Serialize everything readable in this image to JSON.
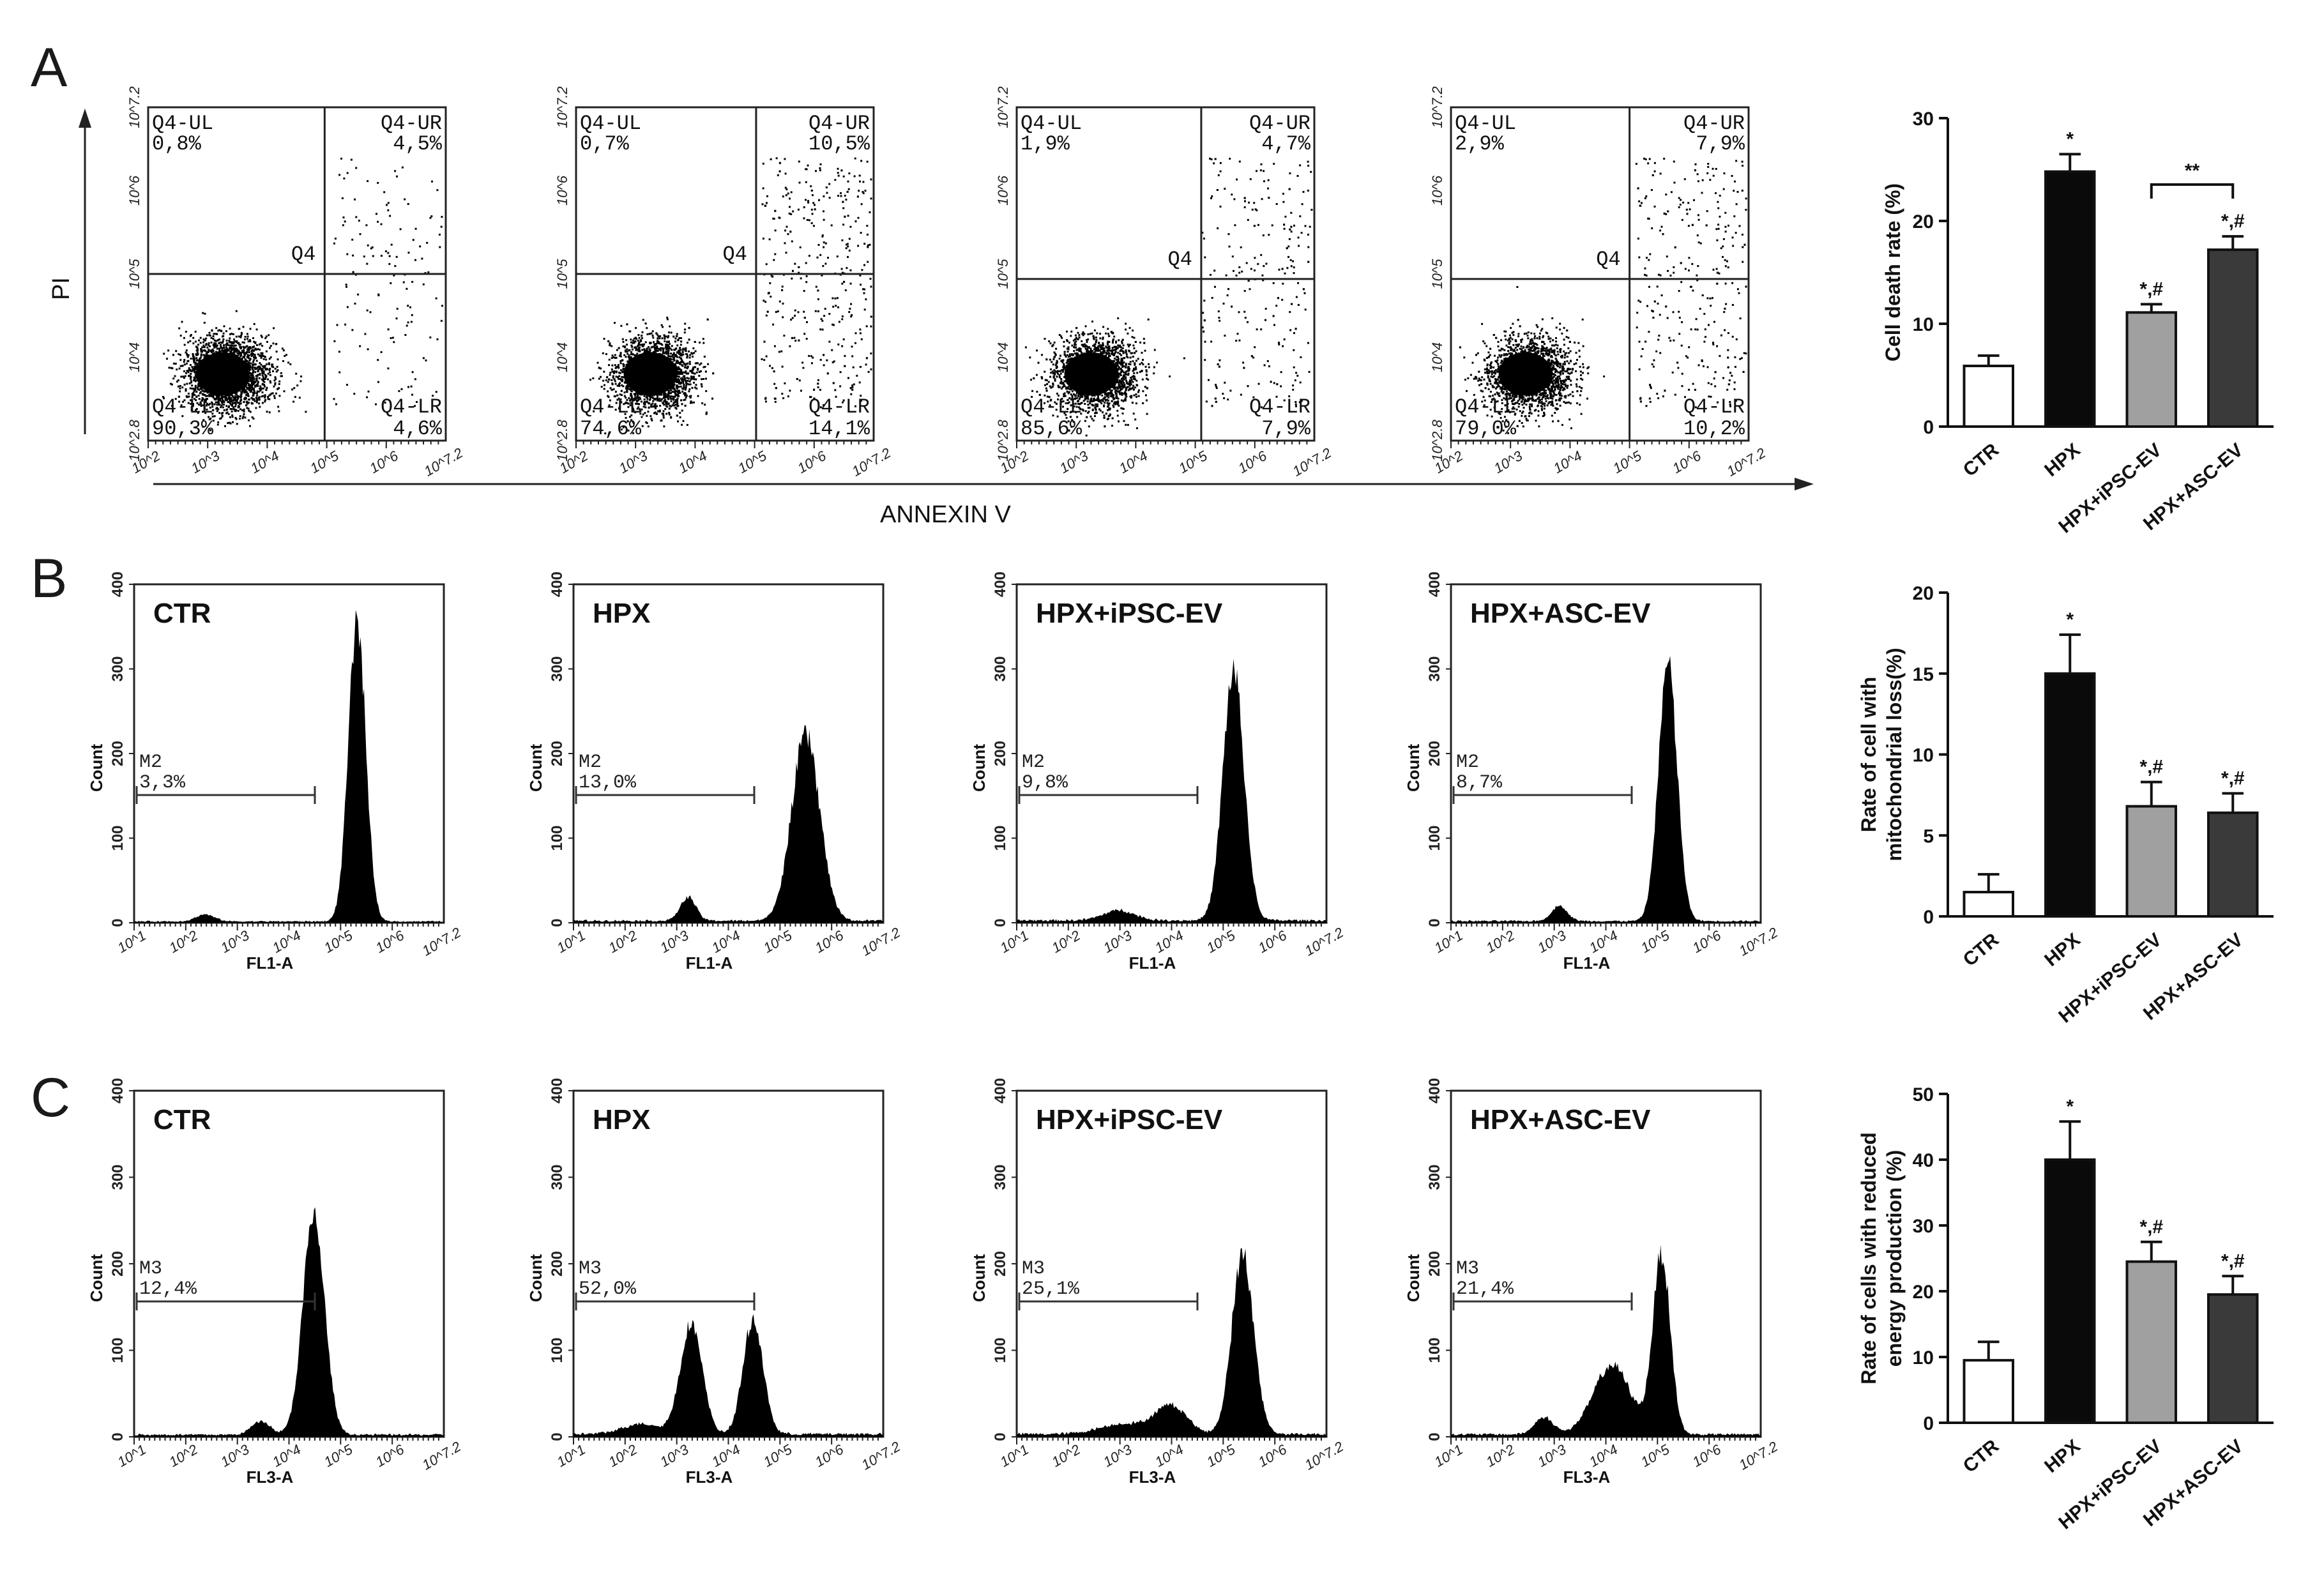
{
  "panel_labels": [
    "A",
    "B",
    "C"
  ],
  "panelA": {
    "y_axis_label": "PI",
    "x_axis_label": "ANNEXIN  V",
    "x_ticks": [
      "10^2",
      "10^3",
      "10^4",
      "10^5",
      "10^6",
      "10^7.2"
    ],
    "y_ticks": [
      "10^2.8",
      "10^4",
      "10^5",
      "10^6",
      "10^7.2"
    ],
    "center_label": "Q4",
    "plots": [
      {
        "ul": "Q4-UL",
        "ul_val": "0,8%",
        "ur": "Q4-UR",
        "ur_val": "4,5%",
        "ll": "Q4-LL",
        "ll_val": "90,3%",
        "lr": "Q4-LR",
        "lr_val": "4,6%"
      },
      {
        "ul": "Q4-UL",
        "ul_val": "0,7%",
        "ur": "Q4-UR",
        "ur_val": "10,5%",
        "ll": "Q4-LL",
        "ll_val": "74,6%",
        "lr": "Q4-LR",
        "lr_val": "14,1%"
      },
      {
        "ul": "Q4-UL",
        "ul_val": "1,9%",
        "ur": "Q4-UR",
        "ur_val": "4,7%",
        "ll": "Q4-LL",
        "ll_val": "85,6%",
        "lr": "Q4-LR",
        "lr_val": "7,9%"
      },
      {
        "ul": "Q4-UL",
        "ul_val": "2,9%",
        "ur": "Q4-UR",
        "ur_val": "7,9%",
        "ll": "Q4-LL",
        "ll_val": "79,0%",
        "lr": "Q4-LR",
        "lr_val": "10,2%"
      }
    ]
  },
  "panelB": {
    "x_axis_label": "FL1-A",
    "y_axis_label": "Count",
    "y_ticks": [
      "0",
      "100",
      "200",
      "300",
      "400"
    ],
    "x_ticks": [
      "10^1",
      "10^2",
      "10^3",
      "10^4",
      "10^5",
      "10^6",
      "10^7.2"
    ],
    "marker": "M2",
    "plots": [
      {
        "title": "CTR",
        "value": "3,3%"
      },
      {
        "title": "HPX",
        "value": "13,0%"
      },
      {
        "title": "HPX+iPSC-EV",
        "value": "9,8%"
      },
      {
        "title": "HPX+ASC-EV",
        "value": "8,7%"
      }
    ]
  },
  "panelC": {
    "x_axis_label": "FL3-A",
    "y_axis_label": "Count",
    "y_ticks": [
      "0",
      "100",
      "200",
      "300",
      "400"
    ],
    "x_ticks": [
      "10^1",
      "10^2",
      "10^3",
      "10^4",
      "10^5",
      "10^6",
      "10^7.2"
    ],
    "marker": "M3",
    "plots": [
      {
        "title": "CTR",
        "value": "12,4%"
      },
      {
        "title": "HPX",
        "value": "52,0%"
      },
      {
        "title": "HPX+iPSC-EV",
        "value": "25,1%"
      },
      {
        "title": "HPX+ASC-EV",
        "value": "21,4%"
      }
    ]
  },
  "chart_data": [
    {
      "type": "bar",
      "id": "cell-death-rate",
      "ylabel": "Cell death rate (%)",
      "categories": [
        "CTR",
        "HPX",
        "HPX+iPSC-EV",
        "HPX+ASC-EV"
      ],
      "values": [
        5.9,
        24.8,
        11.1,
        17.2
      ],
      "errors": [
        1.0,
        1.7,
        0.8,
        1.3
      ],
      "annotations": [
        "",
        "*",
        "*,#",
        "*,#"
      ],
      "bracket": {
        "from": 2,
        "to": 3,
        "label": "**"
      },
      "ylim": [
        0,
        30
      ],
      "yticks": [
        0,
        10,
        20,
        30
      ],
      "colors": [
        "#ffffff",
        "#0a0a0a",
        "#a0a0a0",
        "#3a3a3a"
      ]
    },
    {
      "type": "bar",
      "id": "mitochondrial-loss",
      "ylabel_lines": [
        "Rate of cell with",
        "mitochondrial loss(%)"
      ],
      "categories": [
        "CTR",
        "HPX",
        "HPX+iPSC-EV",
        "HPX+ASC-EV"
      ],
      "values": [
        1.5,
        15.0,
        6.8,
        6.4
      ],
      "errors": [
        1.1,
        2.4,
        1.5,
        1.2
      ],
      "annotations": [
        "",
        "*",
        "*,#",
        "*,#"
      ],
      "ylim": [
        0,
        20
      ],
      "yticks": [
        0,
        5,
        10,
        15,
        20
      ],
      "colors": [
        "#ffffff",
        "#0a0a0a",
        "#a0a0a0",
        "#3a3a3a"
      ]
    },
    {
      "type": "bar",
      "id": "reduced-energy",
      "ylabel_lines": [
        "Rate of cells with reduced",
        "energy production (%)"
      ],
      "categories": [
        "CTR",
        "HPX",
        "HPX+iPSC-EV",
        "HPX+ASC-EV"
      ],
      "values": [
        9.5,
        40.0,
        24.5,
        19.5
      ],
      "errors": [
        2.8,
        5.8,
        3.0,
        2.8
      ],
      "annotations": [
        "",
        "*",
        "*,#",
        "*,#"
      ],
      "ylim": [
        0,
        50
      ],
      "yticks": [
        0,
        10,
        20,
        30,
        40,
        50
      ],
      "colors": [
        "#ffffff",
        "#0a0a0a",
        "#a0a0a0",
        "#3a3a3a"
      ]
    }
  ]
}
